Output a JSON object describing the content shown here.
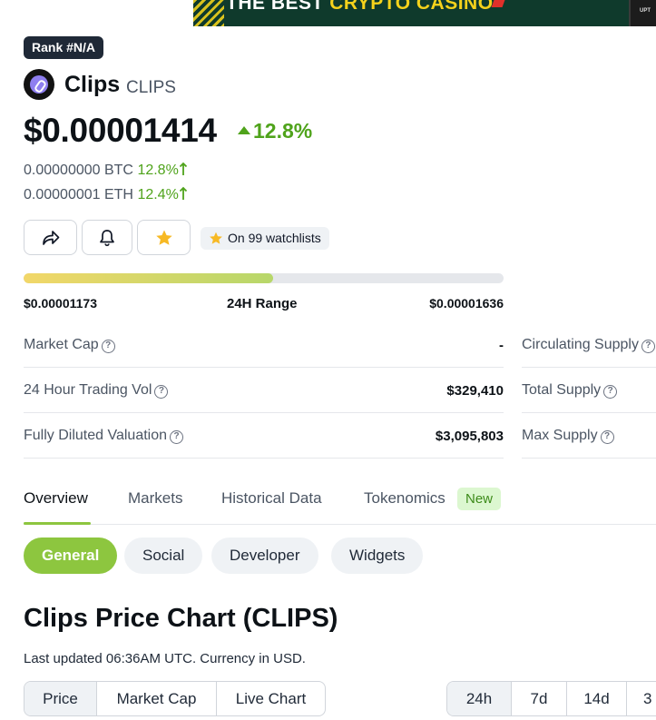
{
  "banner": {
    "text_a": "THE BEST",
    "text_b": "CRYPTO CASINO",
    "box_text": "UPT"
  },
  "coin": {
    "rank": "Rank #N/A",
    "name": "Clips",
    "symbol": "CLIPS",
    "price": "$0.00001414",
    "change_24h": "12.8%",
    "btc_price": "0.00000000 BTC",
    "btc_change": "12.8%",
    "eth_price": "0.00000001 ETH",
    "eth_change": "12.4%",
    "watchlist": "On 99 watchlists"
  },
  "range": {
    "low": "$0.00001173",
    "label": "24H Range",
    "high": "$0.00001636",
    "position_pct": 52
  },
  "stats": {
    "market_cap": {
      "label": "Market Cap",
      "value": "-"
    },
    "volume": {
      "label": "24 Hour Trading Vol",
      "value": "$329,410"
    },
    "fdv": {
      "label": "Fully Diluted Valuation",
      "value": "$3,095,803"
    },
    "circulating": {
      "label": "Circulating Supply"
    },
    "total": {
      "label": "Total Supply"
    },
    "max": {
      "label": "Max Supply"
    }
  },
  "tabs": [
    {
      "label": "Overview"
    },
    {
      "label": "Markets"
    },
    {
      "label": "Historical Data"
    },
    {
      "label": "Tokenomics"
    }
  ],
  "new_badge": "New",
  "subtabs": [
    {
      "label": "General"
    },
    {
      "label": "Social"
    },
    {
      "label": "Developer"
    },
    {
      "label": "Widgets"
    }
  ],
  "chart": {
    "title": "Clips Price Chart (CLIPS)",
    "updated": "Last updated 06:36AM UTC. Currency in USD.",
    "modes": [
      "Price",
      "Market Cap",
      "Live Chart"
    ],
    "periods": [
      "24h",
      "7d",
      "14d",
      "3"
    ]
  },
  "colors": {
    "accent_green": "#8dc63f",
    "positive": "#4fa31b",
    "star": "#f7b924"
  }
}
